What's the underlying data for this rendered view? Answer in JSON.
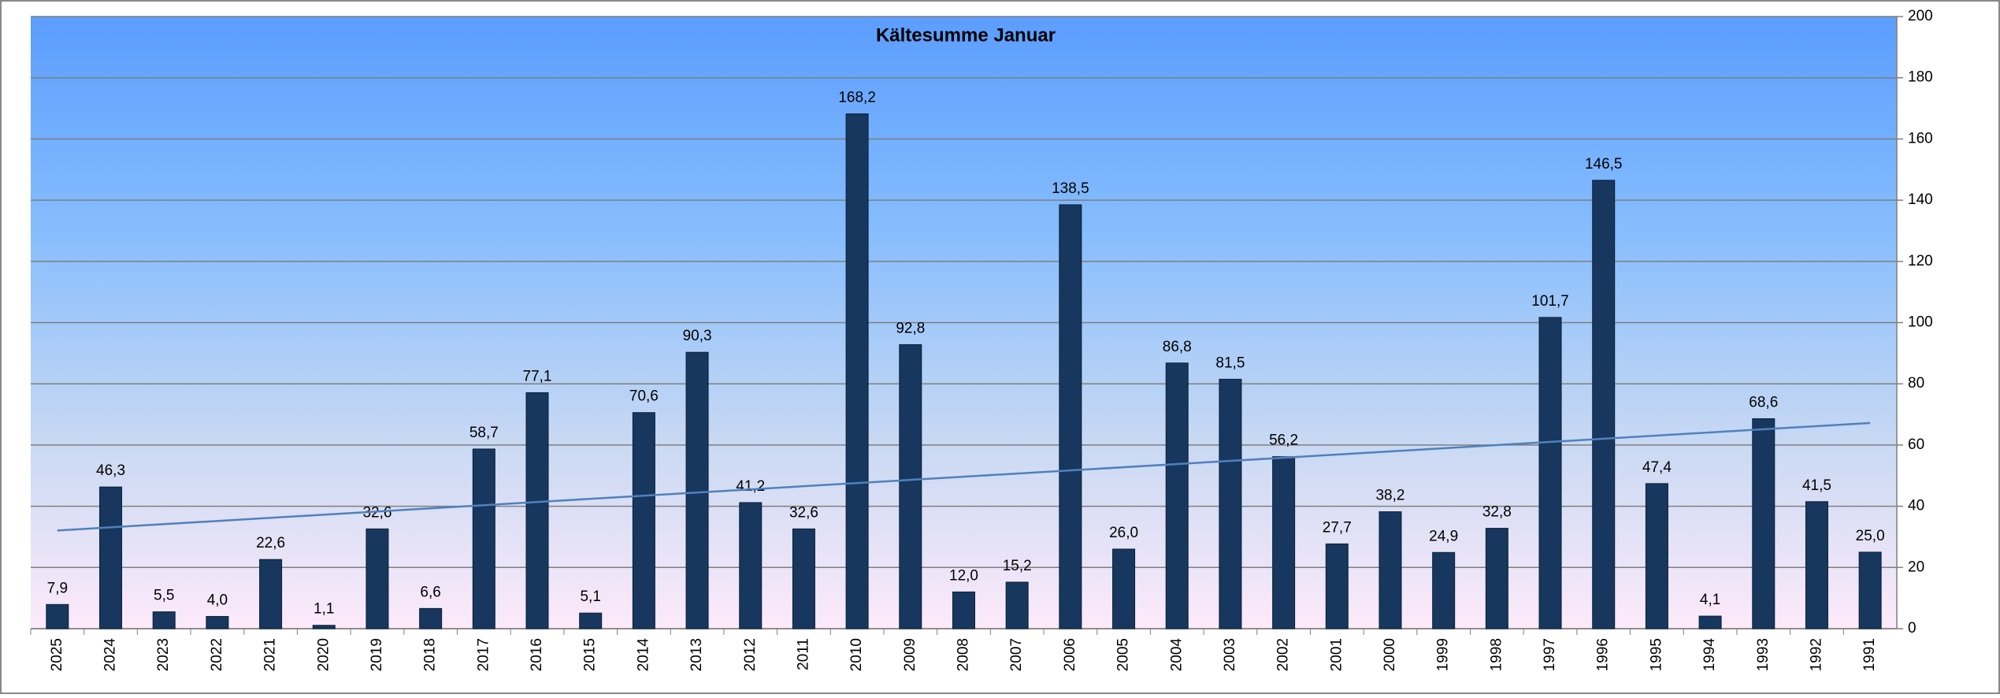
{
  "chart_data": {
    "type": "bar",
    "title": "Kältesumme Januar",
    "categories": [
      "2025",
      "2024",
      "2023",
      "2022",
      "2021",
      "2020",
      "2019",
      "2018",
      "2017",
      "2016",
      "2015",
      "2014",
      "2013",
      "2012",
      "2011",
      "2010",
      "2009",
      "2008",
      "2007",
      "2006",
      "2005",
      "2004",
      "2003",
      "2002",
      "2001",
      "2000",
      "1999",
      "1998",
      "1997",
      "1996",
      "1995",
      "1994",
      "1993",
      "1992",
      "1991"
    ],
    "values": [
      7.9,
      46.3,
      5.5,
      4.0,
      22.6,
      1.1,
      32.6,
      6.6,
      58.7,
      77.1,
      5.1,
      70.6,
      90.3,
      41.2,
      32.6,
      168.2,
      92.8,
      12.0,
      15.2,
      138.5,
      26.0,
      86.8,
      81.5,
      56.2,
      27.7,
      38.2,
      24.9,
      32.8,
      101.7,
      146.5,
      47.4,
      4.1,
      68.6,
      41.5,
      25.0
    ],
    "value_labels": [
      "7,9",
      "46,3",
      "5,5",
      "4,0",
      "22,6",
      "1,1",
      "32,6",
      "6,6",
      "58,7",
      "77,1",
      "5,1",
      "70,6",
      "90,3",
      "41,2",
      "32,6",
      "168,2",
      "92,8",
      "12,0",
      "15,2",
      "138,5",
      "26,0",
      "86,8",
      "81,5",
      "56,2",
      "27,7",
      "38,2",
      "24,9",
      "32,8",
      "101,7",
      "146,5",
      "47,4",
      "4,1",
      "68,6",
      "41,5",
      "25,0"
    ],
    "color": "#17375e",
    "ylim": [
      0,
      200
    ],
    "yticks": [
      0,
      20,
      40,
      60,
      80,
      100,
      120,
      140,
      160,
      180,
      200
    ],
    "y_axis_side": "right",
    "grid": true,
    "trendline": "linear",
    "trendline_color": "#4f81bd"
  }
}
